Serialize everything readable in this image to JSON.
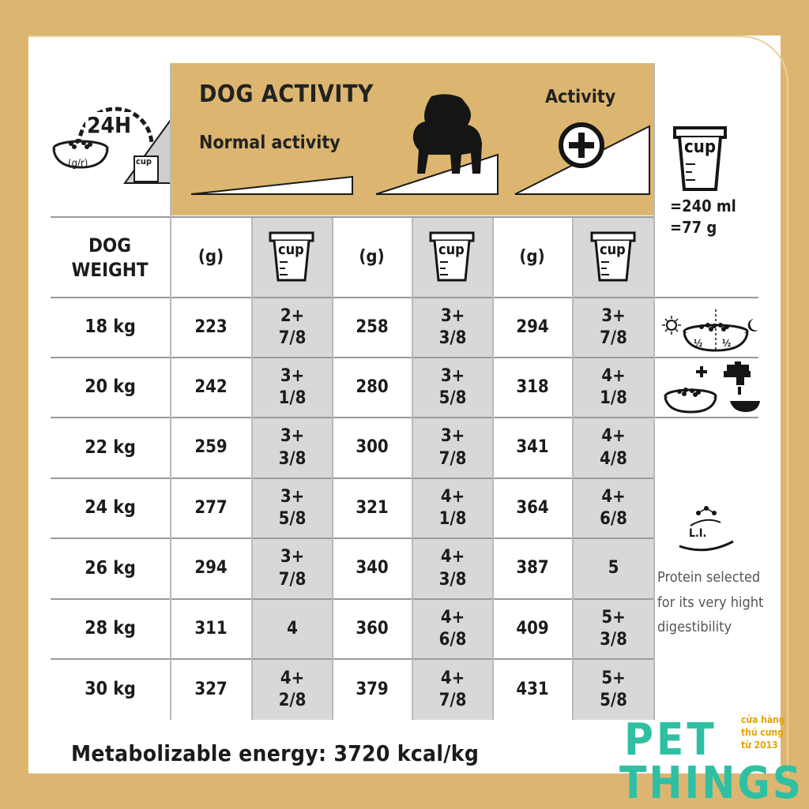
{
  "header": {
    "dog_activity": "DOG ACTIVITY",
    "normal_activity": "Normal activity",
    "activity": "Activity",
    "badge_24h": "24H",
    "unit_gr": "(g/r)",
    "cup_label": "cup"
  },
  "cup_equivalence": {
    "ml": "=240 ml",
    "g": "=77 g"
  },
  "table": {
    "weight_label_line1": "DOG",
    "weight_label_line2": "WEIGHT",
    "col_headers": [
      "(g)",
      "cup",
      "(g)",
      "cup",
      "(g)",
      "cup"
    ],
    "rows": [
      {
        "weight": "18 kg",
        "g1": "223",
        "c1a": "2+",
        "c1b": "7/8",
        "g2": "258",
        "c2a": "3+",
        "c2b": "3/8",
        "g3": "294",
        "c3a": "3+",
        "c3b": "7/8"
      },
      {
        "weight": "20 kg",
        "g1": "242",
        "c1a": "3+",
        "c1b": "1/8",
        "g2": "280",
        "c2a": "3+",
        "c2b": "5/8",
        "g3": "318",
        "c3a": "4+",
        "c3b": "1/8"
      },
      {
        "weight": "22 kg",
        "g1": "259",
        "c1a": "3+",
        "c1b": "3/8",
        "g2": "300",
        "c2a": "3+",
        "c2b": "7/8",
        "g3": "341",
        "c3a": "4+",
        "c3b": "4/8"
      },
      {
        "weight": "24 kg",
        "g1": "277",
        "c1a": "3+",
        "c1b": "5/8",
        "g2": "321",
        "c2a": "4+",
        "c2b": "1/8",
        "g3": "364",
        "c3a": "4+",
        "c3b": "6/8"
      },
      {
        "weight": "26 kg",
        "g1": "294",
        "c1a": "3+",
        "c1b": "7/8",
        "g2": "340",
        "c2a": "4+",
        "c2b": "3/8",
        "g3": "387",
        "c3a": "5",
        "c3b": ""
      },
      {
        "weight": "28 kg",
        "g1": "311",
        "c1a": "4",
        "c1b": "",
        "g2": "360",
        "c2a": "4+",
        "c2b": "6/8",
        "g3": "409",
        "c3a": "5+",
        "c3b": "3/8"
      },
      {
        "weight": "30 kg",
        "g1": "327",
        "c1a": "4+",
        "c1b": "2/8",
        "g2": "379",
        "c2a": "4+",
        "c2b": "7/8",
        "g3": "431",
        "c3a": "5+",
        "c3b": "5/8"
      }
    ]
  },
  "side": {
    "half": "½",
    "li": "L.I.",
    "protein_text": "Protein selected for its very hight digestibility"
  },
  "footer": {
    "energy": "Metabolizable energy: 3720 kcal/kg"
  },
  "logo": {
    "pet": "PET",
    "things": "THINGS",
    "tag1": "cửa hàng",
    "tag2": "thú cưng",
    "tag3": "từ    2013"
  },
  "colors": {
    "gold": "#dcb670",
    "shade": "#d8d8d8",
    "logo_teal": "#2fc0a4",
    "logo_orange": "#e6a400"
  }
}
